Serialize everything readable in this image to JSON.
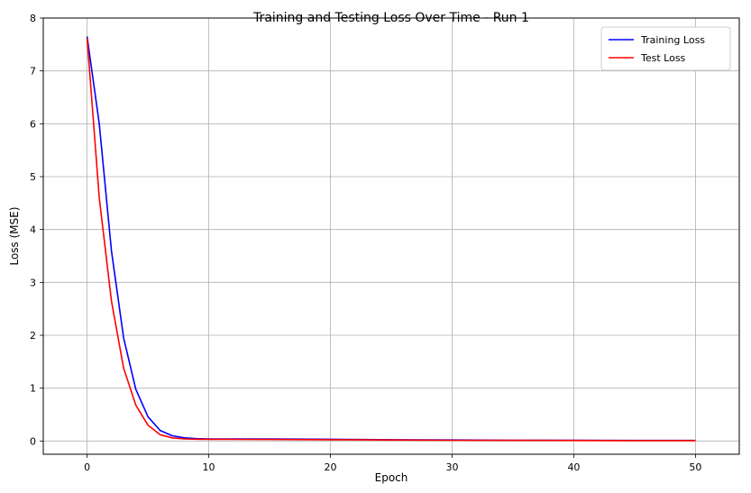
{
  "chart_data": {
    "type": "line",
    "title": "Training and Testing Loss Over Time - Run 1",
    "xlabel": "Epoch",
    "ylabel": "Loss (MSE)",
    "xlim": [
      -3.6,
      53.6
    ],
    "ylim": [
      -0.25,
      8.0
    ],
    "x_ticks": [
      0,
      10,
      20,
      30,
      40,
      50
    ],
    "y_ticks": [
      0,
      1,
      2,
      3,
      4,
      5,
      6,
      7,
      8
    ],
    "grid": true,
    "legend_position": "top-right",
    "series": [
      {
        "name": "Training Loss",
        "color": "#0000ff",
        "x": [
          0,
          1,
          2,
          3,
          4,
          5,
          6,
          7,
          8,
          9,
          10,
          12,
          15,
          20,
          25,
          30,
          35,
          40,
          45,
          50
        ],
        "values": [
          7.65,
          6.0,
          3.6,
          1.95,
          0.98,
          0.46,
          0.2,
          0.1,
          0.06,
          0.045,
          0.04,
          0.04,
          0.038,
          0.033,
          0.025,
          0.02,
          0.015,
          0.012,
          0.01,
          0.01
        ]
      },
      {
        "name": "Test Loss",
        "color": "#ff0000",
        "x": [
          0,
          1,
          2,
          3,
          4,
          5,
          6,
          7,
          8,
          9,
          10,
          12,
          15,
          20,
          25,
          30,
          35,
          40,
          45,
          50
        ],
        "values": [
          7.62,
          4.6,
          2.65,
          1.38,
          0.68,
          0.3,
          0.12,
          0.06,
          0.04,
          0.035,
          0.033,
          0.032,
          0.03,
          0.025,
          0.02,
          0.015,
          0.012,
          0.01,
          0.008,
          0.008
        ]
      }
    ]
  }
}
